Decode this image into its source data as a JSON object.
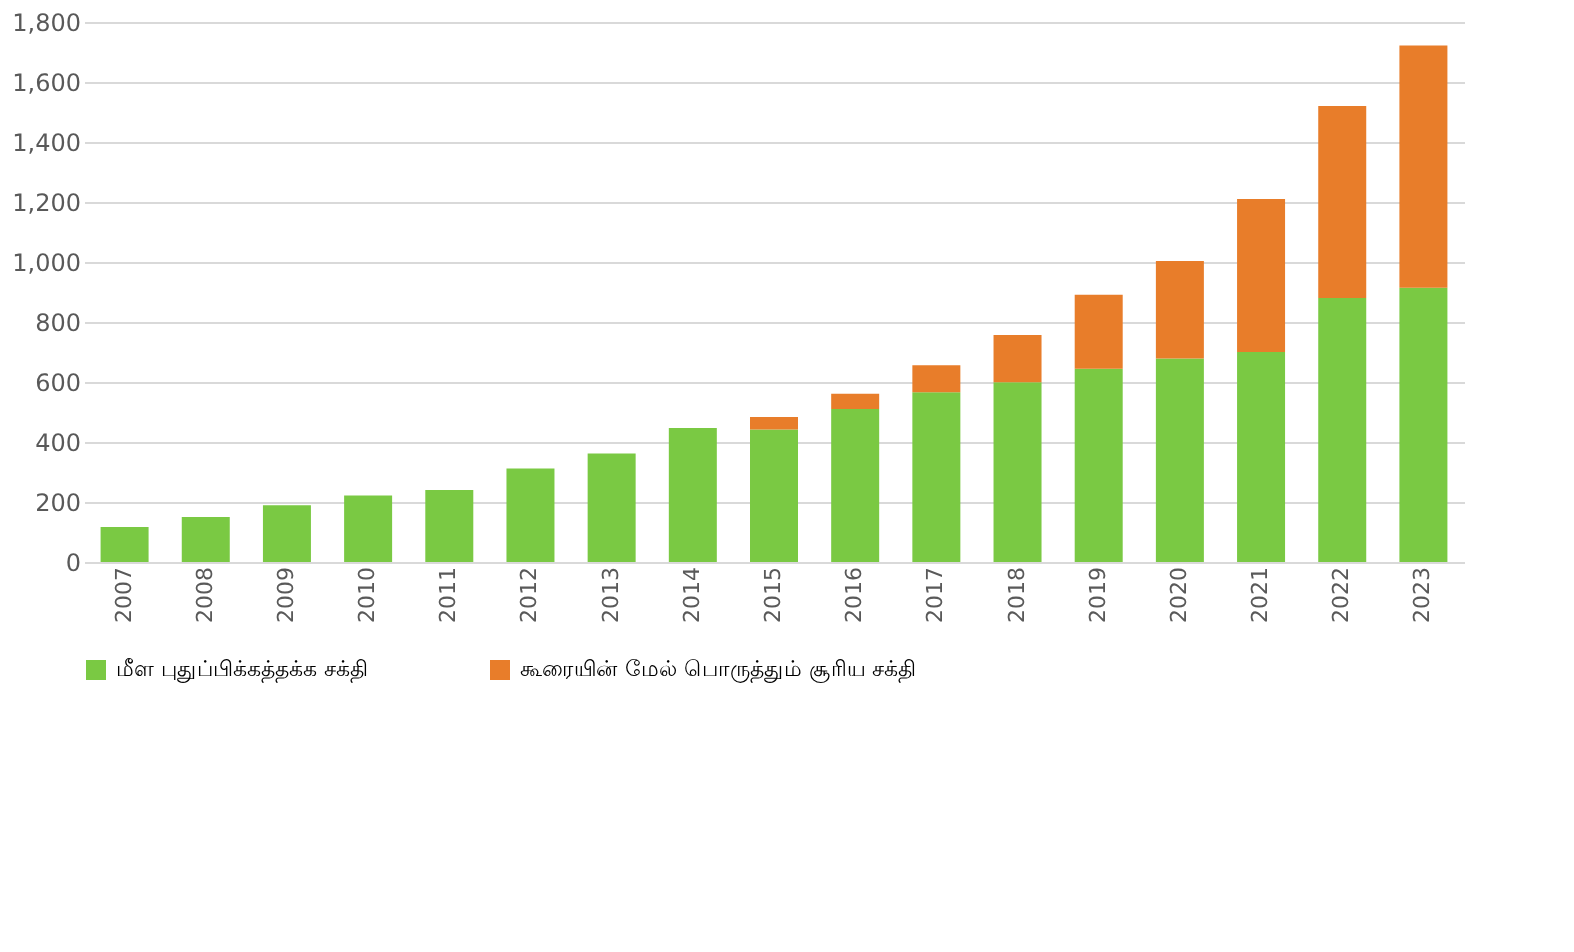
{
  "chart_data": {
    "type": "bar",
    "stacked": true,
    "categories": [
      "2007",
      "2008",
      "2009",
      "2010",
      "2011",
      "2012",
      "2013",
      "2014",
      "2015",
      "2016",
      "2017",
      "2018",
      "2019",
      "2020",
      "2021",
      "2022",
      "2023"
    ],
    "series": [
      {
        "name": "மீள புதுப்பிக்கத்தக்க சக்தி",
        "color": "#7ac943",
        "values": [
          117,
          150,
          189,
          222,
          240,
          312,
          362,
          447,
          442,
          510,
          566,
          599,
          644,
          678,
          700,
          880,
          914
        ]
      },
      {
        "name": "கூரையின் மேல் பொருத்தும் சூரிய சக்தி",
        "color": "#e87d2a",
        "values": [
          null,
          null,
          null,
          null,
          null,
          null,
          null,
          null,
          41,
          51,
          90,
          158,
          247,
          325,
          510,
          640,
          808
        ]
      }
    ],
    "ylim": [
      0,
      1800
    ],
    "yticks": [
      0,
      200,
      400,
      600,
      800,
      {
        "value": 1000,
        "label": "1,000"
      },
      {
        "value": 1200,
        "label": "1,200"
      },
      {
        "value": 1400,
        "label": "1,400"
      },
      {
        "value": 1600,
        "label": "1,600"
      },
      {
        "value": 1800,
        "label": "1,800"
      }
    ],
    "grid": "y",
    "legend": "bottom"
  }
}
